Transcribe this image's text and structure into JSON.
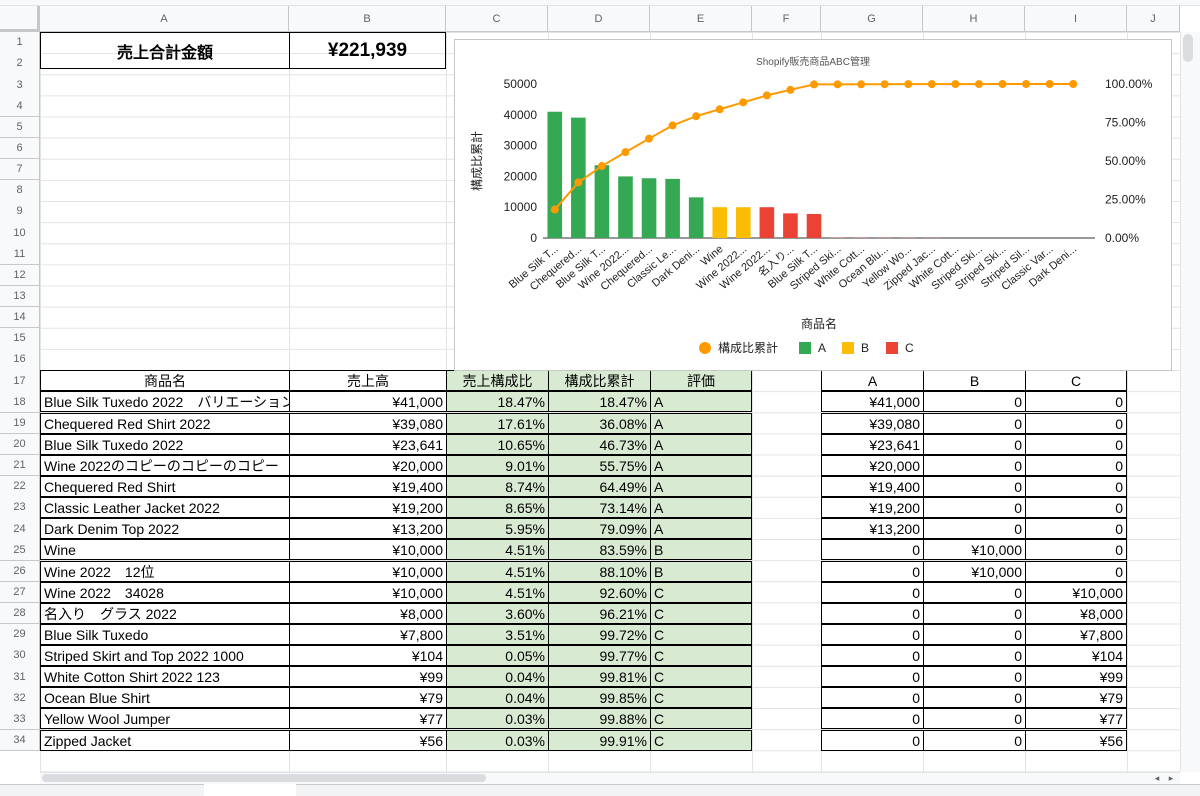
{
  "columns": [
    "A",
    "B",
    "C",
    "D",
    "E",
    "F",
    "G",
    "H",
    "I",
    "J"
  ],
  "rows": [
    "1",
    "2",
    "3",
    "4",
    "5",
    "6",
    "7",
    "8",
    "9",
    "10",
    "11",
    "12",
    "13",
    "14",
    "15",
    "16",
    "17",
    "18",
    "19",
    "20",
    "21",
    "22",
    "23",
    "24",
    "25",
    "26",
    "27",
    "28",
    "29",
    "30",
    "31",
    "32",
    "33",
    "34"
  ],
  "summary": {
    "label": "売上合計金額",
    "value": "¥221,939"
  },
  "table": {
    "headers": [
      "商品名",
      "売上高",
      "売上構成比",
      "構成比累計",
      "評価"
    ],
    "rows": [
      [
        "Blue Silk Tuxedo 2022　バリエーション",
        "¥41,000",
        "18.47%",
        "18.47%",
        "A"
      ],
      [
        "Chequered Red Shirt 2022",
        "¥39,080",
        "17.61%",
        "36.08%",
        "A"
      ],
      [
        "Blue Silk Tuxedo 2022",
        "¥23,641",
        "10.65%",
        "46.73%",
        "A"
      ],
      [
        "Wine 2022のコピーのコピーのコピー",
        "¥20,000",
        "9.01%",
        "55.75%",
        "A"
      ],
      [
        "Chequered Red Shirt",
        "¥19,400",
        "8.74%",
        "64.49%",
        "A"
      ],
      [
        "Classic Leather Jacket 2022",
        "¥19,200",
        "8.65%",
        "73.14%",
        "A"
      ],
      [
        "Dark Denim Top 2022",
        "¥13,200",
        "5.95%",
        "79.09%",
        "A"
      ],
      [
        "Wine",
        "¥10,000",
        "4.51%",
        "83.59%",
        "B"
      ],
      [
        "Wine 2022　12位",
        "¥10,000",
        "4.51%",
        "88.10%",
        "B"
      ],
      [
        "Wine 2022　34028",
        "¥10,000",
        "4.51%",
        "92.60%",
        "C"
      ],
      [
        "名入り　グラス 2022",
        "¥8,000",
        "3.60%",
        "96.21%",
        "C"
      ],
      [
        "Blue Silk Tuxedo",
        "¥7,800",
        "3.51%",
        "99.72%",
        "C"
      ],
      [
        "Striped Skirt and Top 2022 1000",
        "¥104",
        "0.05%",
        "99.77%",
        "C"
      ],
      [
        "White Cotton Shirt 2022 123",
        "¥99",
        "0.04%",
        "99.81%",
        "C"
      ],
      [
        "Ocean Blue Shirt",
        "¥79",
        "0.04%",
        "99.85%",
        "C"
      ],
      [
        "Yellow Wool Jumper",
        "¥77",
        "0.03%",
        "99.88%",
        "C"
      ],
      [
        "Zipped Jacket",
        "¥56",
        "0.03%",
        "99.91%",
        "C"
      ]
    ]
  },
  "abc": {
    "headers": [
      "A",
      "B",
      "C"
    ],
    "rows": [
      [
        "¥41,000",
        "0",
        "0"
      ],
      [
        "¥39,080",
        "0",
        "0"
      ],
      [
        "¥23,641",
        "0",
        "0"
      ],
      [
        "¥20,000",
        "0",
        "0"
      ],
      [
        "¥19,400",
        "0",
        "0"
      ],
      [
        "¥19,200",
        "0",
        "0"
      ],
      [
        "¥13,200",
        "0",
        "0"
      ],
      [
        "0",
        "¥10,000",
        "0"
      ],
      [
        "0",
        "¥10,000",
        "0"
      ],
      [
        "0",
        "0",
        "¥10,000"
      ],
      [
        "0",
        "0",
        "¥8,000"
      ],
      [
        "0",
        "0",
        "¥7,800"
      ],
      [
        "0",
        "0",
        "¥104"
      ],
      [
        "0",
        "0",
        "¥99"
      ],
      [
        "0",
        "0",
        "¥79"
      ],
      [
        "0",
        "0",
        "¥77"
      ],
      [
        "0",
        "0",
        "¥56"
      ]
    ]
  },
  "colors": {
    "A": "#34a853",
    "B": "#fbbc04",
    "C": "#ea4335",
    "line": "#ff9900"
  },
  "chart_data": {
    "type": "bar",
    "title": "Shopify販売商品ABC管理",
    "xlabel": "商品名",
    "ylabel": "構成比累計",
    "ylim": [
      0,
      50000
    ],
    "yticks": [
      "0",
      "10000",
      "20000",
      "30000",
      "40000",
      "50000"
    ],
    "y2lim": [
      0,
      100
    ],
    "y2ticks": [
      "0.00%",
      "25.00%",
      "50.00%",
      "75.00%",
      "100.00%"
    ],
    "categories": [
      "Blue Silk T...",
      "Chequered...",
      "Blue Silk T...",
      "Wine 2022...",
      "Chequered...",
      "Classic Le...",
      "Dark Deni...",
      "Wine",
      "Wine 2022...",
      "Wine 2022...",
      "名入り...",
      "Blue Silk T...",
      "Striped Ski...",
      "White Cott...",
      "Ocean Blu...",
      "Yellow Wo...",
      "Zipped Jac...",
      "White Cott...",
      "Striped Ski...",
      "Striped Ski...",
      "Striped Sil...",
      "Classic Var...",
      "Dark Deni..."
    ],
    "series": [
      {
        "name": "A",
        "type": "bar",
        "values": [
          41000,
          39080,
          23641,
          20000,
          19400,
          19200,
          13200,
          0,
          0,
          0,
          0,
          0,
          0,
          0,
          0,
          0,
          0,
          0,
          0,
          0,
          0,
          0,
          0
        ]
      },
      {
        "name": "B",
        "type": "bar",
        "values": [
          0,
          0,
          0,
          0,
          0,
          0,
          0,
          10000,
          10000,
          0,
          0,
          0,
          0,
          0,
          0,
          0,
          0,
          0,
          0,
          0,
          0,
          0,
          0
        ]
      },
      {
        "name": "C",
        "type": "bar",
        "values": [
          0,
          0,
          0,
          0,
          0,
          0,
          0,
          0,
          0,
          10000,
          8000,
          7800,
          104,
          99,
          79,
          77,
          56,
          0,
          0,
          0,
          0,
          0,
          0
        ]
      },
      {
        "name": "構成比累計",
        "type": "line",
        "axis": "right",
        "values": [
          18.47,
          36.08,
          46.73,
          55.75,
          64.49,
          73.14,
          79.09,
          83.59,
          88.1,
          92.6,
          96.21,
          99.72,
          99.77,
          99.81,
          99.85,
          99.88,
          99.91,
          99.93,
          99.95,
          99.97,
          99.98,
          99.99,
          100
        ]
      }
    ],
    "legend": [
      "構成比累計",
      "A",
      "B",
      "C"
    ],
    "legend_position": "bottom"
  }
}
